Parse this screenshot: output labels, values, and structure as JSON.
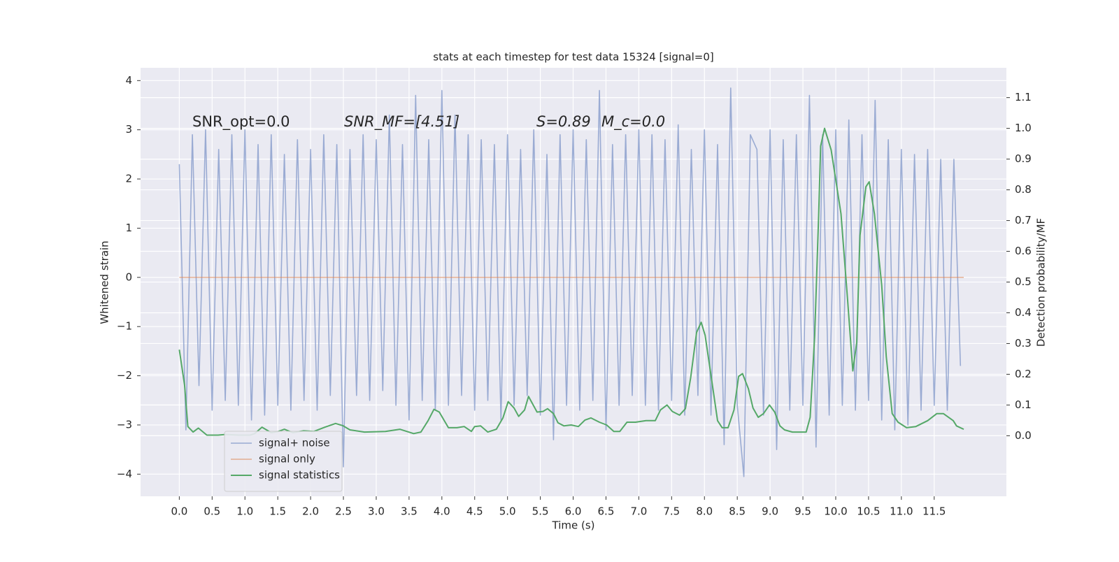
{
  "chart_data": {
    "type": "line",
    "title": "stats at each timestep for test data 15324 [signal=0]",
    "x_label": "Time (s)",
    "y_label": "Whitened strain",
    "y2_label": "Detection probability/MF",
    "annotations": [
      "SNR_opt=0.0",
      "SNR_MF=[4.51]",
      "S=0.89",
      "M_c=0.0"
    ],
    "xlim": [
      -0.59,
      12.6
    ],
    "ylim": [
      -4.45,
      4.26
    ],
    "y2lim": [
      -0.197,
      1.197
    ],
    "xticks": [
      {
        "value": 0,
        "label": "0.0"
      },
      {
        "value": 0.5,
        "label": "0.5"
      },
      {
        "value": 1,
        "label": "1.0"
      },
      {
        "value": 1.5,
        "label": "1.5"
      },
      {
        "value": 2,
        "label": "2.0"
      },
      {
        "value": 2.5,
        "label": "2.5"
      },
      {
        "value": 3,
        "label": "3.0"
      },
      {
        "value": 3.5,
        "label": "3.5"
      },
      {
        "value": 4,
        "label": "4.0"
      },
      {
        "value": 4.5,
        "label": "4.5"
      },
      {
        "value": 5,
        "label": "5.0"
      },
      {
        "value": 5.5,
        "label": "5.5"
      },
      {
        "value": 6,
        "label": "6.0"
      },
      {
        "value": 6.5,
        "label": "6.5"
      },
      {
        "value": 7,
        "label": "7.0"
      },
      {
        "value": 7.5,
        "label": "7.5"
      },
      {
        "value": 8,
        "label": "8.0"
      },
      {
        "value": 8.5,
        "label": "8.5"
      },
      {
        "value": 9,
        "label": "9.0"
      },
      {
        "value": 9.5,
        "label": "9.5"
      },
      {
        "value": 10,
        "label": "10.0"
      },
      {
        "value": 10.5,
        "label": "10.5"
      },
      {
        "value": 11,
        "label": "11.0"
      },
      {
        "value": 11.5,
        "label": "11.5"
      }
    ],
    "yticks": [
      {
        "value": -4,
        "label": "−4"
      },
      {
        "value": -3,
        "label": "−3"
      },
      {
        "value": -2,
        "label": "−2"
      },
      {
        "value": -1,
        "label": "−1"
      },
      0,
      1,
      2,
      3,
      4
    ],
    "y2ticks": [
      {
        "value": 0,
        "label": "0.0"
      },
      {
        "value": 0.1,
        "label": "0.1"
      },
      {
        "value": 0.2,
        "label": "0.2"
      },
      {
        "value": 0.3,
        "label": "0.3"
      },
      {
        "value": 0.4,
        "label": "0.4"
      },
      {
        "value": 0.5,
        "label": "0.5"
      },
      {
        "value": 0.6,
        "label": "0.6"
      },
      {
        "value": 0.7,
        "label": "0.7"
      },
      {
        "value": 0.8,
        "label": "0.8"
      },
      {
        "value": 0.9,
        "label": "0.9"
      },
      {
        "value": 1,
        "label": "1.0"
      },
      {
        "value": 1.1,
        "label": "1.1"
      }
    ],
    "grid": true,
    "legend": "lower left",
    "series": [
      {
        "name": "signal+ noise",
        "color": "#7f96c8",
        "axis": "y",
        "x": [
          0,
          0.1,
          0.2,
          0.3,
          0.4,
          0.5,
          0.6,
          0.7,
          0.8,
          0.9,
          1,
          1.1,
          1.2,
          1.3,
          1.4,
          1.5,
          1.6,
          1.7,
          1.8,
          1.9,
          2,
          2.1,
          2.2,
          2.3,
          2.4,
          2.5,
          2.6,
          2.7,
          2.8,
          2.9,
          3,
          3.1,
          3.2,
          3.3,
          3.4,
          3.5,
          3.6,
          3.7,
          3.8,
          3.9,
          4,
          4.1,
          4.2,
          4.3,
          4.4,
          4.5,
          4.6,
          4.7,
          4.8,
          4.9,
          5,
          5.1,
          5.2,
          5.3,
          5.4,
          5.5,
          5.6,
          5.7,
          5.8,
          5.9,
          6,
          6.1,
          6.2,
          6.3,
          6.4,
          6.5,
          6.6,
          6.7,
          6.8,
          6.9,
          7,
          7.1,
          7.2,
          7.3,
          7.4,
          7.5,
          7.6,
          7.7,
          7.8,
          7.9,
          8,
          8.1,
          8.2,
          8.3,
          8.4,
          8.5,
          8.6,
          8.7,
          8.8,
          8.9,
          9,
          9.1,
          9.2,
          9.3,
          9.4,
          9.5,
          9.6,
          9.7,
          9.8,
          9.9,
          10,
          10.1,
          10.2,
          10.3,
          10.4,
          10.5,
          10.6,
          10.7,
          10.8,
          10.9,
          11,
          11.1,
          11.2,
          11.3,
          11.4,
          11.5,
          11.6,
          11.7,
          11.8,
          11.9
        ],
        "values": [
          2.3,
          -3.1,
          2.9,
          -2.2,
          3.0,
          -2.7,
          2.6,
          -2.5,
          2.9,
          -2.6,
          3.0,
          -2.9,
          2.7,
          -2.8,
          2.9,
          -2.6,
          2.5,
          -2.7,
          2.8,
          -2.5,
          2.6,
          -2.7,
          2.9,
          -2.4,
          2.7,
          -3.85,
          2.6,
          -2.4,
          2.9,
          -2.5,
          2.8,
          -2.3,
          3.3,
          -2.6,
          2.7,
          -2.9,
          3.7,
          -2.5,
          2.8,
          -2.7,
          3.8,
          -2.6,
          3.3,
          -2.4,
          2.9,
          -2.7,
          2.8,
          -2.5,
          2.7,
          -2.9,
          2.9,
          -2.6,
          2.6,
          -2.4,
          3.0,
          -2.8,
          2.5,
          -3.3,
          2.9,
          -2.6,
          3.0,
          -2.7,
          2.8,
          -2.5,
          3.8,
          -3.1,
          2.7,
          -2.6,
          2.9,
          -2.4,
          3.0,
          -2.6,
          2.9,
          -2.7,
          2.8,
          -2.5,
          3.1,
          -2.8,
          2.6,
          -2.4,
          3.0,
          -2.8,
          2.7,
          -3.4,
          3.85,
          -2.6,
          -4.05,
          2.9,
          2.6,
          -2.8,
          3.0,
          -3.5,
          2.8,
          -2.7,
          2.9,
          -2.6,
          3.7,
          -3.45,
          2.9,
          -2.8,
          3.0,
          -2.6,
          3.2,
          -2.7,
          2.9,
          -2.5,
          3.6,
          -2.9,
          2.8,
          -3.1,
          2.6,
          -3.0,
          2.5,
          -2.7,
          2.6,
          -2.6,
          2.4,
          -2.7,
          2.4,
          -1.8
        ]
      },
      {
        "name": "signal only",
        "color": "#dd8452",
        "axis": "y",
        "x": [
          0,
          11.95
        ],
        "values": [
          0,
          0
        ]
      },
      {
        "name": "signal statistics",
        "color": "#55a868",
        "axis": "y2",
        "x": [
          0,
          0.08,
          0.13,
          0.21,
          0.29,
          0.42,
          0.59,
          0.7,
          0.91,
          1.08,
          1.15,
          1.26,
          1.4,
          1.51,
          1.6,
          1.73,
          1.89,
          2.05,
          2.22,
          2.38,
          2.49,
          2.6,
          2.82,
          3.14,
          3.36,
          3.57,
          3.68,
          3.79,
          3.88,
          3.96,
          4.1,
          4.23,
          4.34,
          4.45,
          4.5,
          4.59,
          4.7,
          4.83,
          4.93,
          5.01,
          5.1,
          5.17,
          5.26,
          5.32,
          5.45,
          5.54,
          5.61,
          5.7,
          5.77,
          5.86,
          5.97,
          6.08,
          6.18,
          6.27,
          6.4,
          6.51,
          6.62,
          6.71,
          6.82,
          6.95,
          7.11,
          7.25,
          7.33,
          7.43,
          7.51,
          7.62,
          7.71,
          7.79,
          7.88,
          7.95,
          8.01,
          8.09,
          8.2,
          8.27,
          8.36,
          8.45,
          8.52,
          8.58,
          8.67,
          8.74,
          8.82,
          8.9,
          8.99,
          9.07,
          9.15,
          9.22,
          9.34,
          9.55,
          9.61,
          9.68,
          9.74,
          9.77,
          9.83,
          9.93,
          10.08,
          10.18,
          10.26,
          10.32,
          10.37,
          10.46,
          10.51,
          10.59,
          10.7,
          10.77,
          10.86,
          10.95,
          11.08,
          11.22,
          11.4,
          11.54,
          11.64,
          11.79,
          11.84,
          11.95
        ],
        "values": [
          0.28,
          0.165,
          0.03,
          0.012,
          0.025,
          0.002,
          0.002,
          0.004,
          0.002,
          0.002,
          0.007,
          0.028,
          0.01,
          0.014,
          0.021,
          0.01,
          0.016,
          0.014,
          0.028,
          0.04,
          0.033,
          0.019,
          0.012,
          0.014,
          0.021,
          0.007,
          0.012,
          0.049,
          0.086,
          0.077,
          0.026,
          0.026,
          0.03,
          0.014,
          0.03,
          0.032,
          0.012,
          0.021,
          0.058,
          0.111,
          0.09,
          0.063,
          0.084,
          0.128,
          0.077,
          0.079,
          0.088,
          0.072,
          0.042,
          0.032,
          0.035,
          0.03,
          0.051,
          0.058,
          0.044,
          0.035,
          0.014,
          0.014,
          0.044,
          0.044,
          0.049,
          0.049,
          0.084,
          0.1,
          0.079,
          0.067,
          0.088,
          0.188,
          0.336,
          0.369,
          0.327,
          0.211,
          0.049,
          0.026,
          0.026,
          0.084,
          0.193,
          0.202,
          0.153,
          0.09,
          0.06,
          0.072,
          0.1,
          0.077,
          0.032,
          0.019,
          0.012,
          0.012,
          0.06,
          0.327,
          0.72,
          0.942,
          1.0,
          0.93,
          0.722,
          0.443,
          0.211,
          0.304,
          0.652,
          0.81,
          0.826,
          0.722,
          0.49,
          0.258,
          0.072,
          0.044,
          0.026,
          0.03,
          0.049,
          0.072,
          0.072,
          0.049,
          0.032,
          0.021
        ]
      }
    ]
  }
}
